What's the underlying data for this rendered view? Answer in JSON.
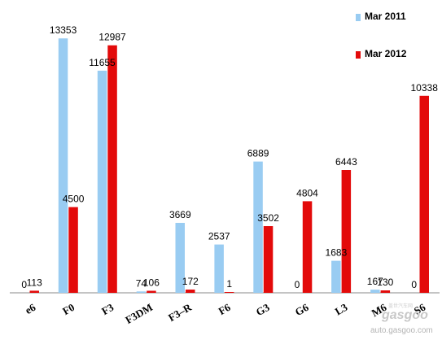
{
  "chart_data": {
    "type": "bar",
    "categories": [
      "e6",
      "F0",
      "F3",
      "F3DM",
      "F3-R",
      "F6",
      "G3",
      "G6",
      "L3",
      "M6",
      "S6"
    ],
    "series": [
      {
        "name": "Mar 2011",
        "color": "#99ccf2",
        "values": [
          0,
          13353,
          11655,
          74,
          3669,
          2537,
          6889,
          0,
          1683,
          167,
          0
        ]
      },
      {
        "name": "Mar 2012",
        "color": "#e30a0a",
        "values": [
          113,
          4500,
          12987,
          106,
          172,
          1,
          3502,
          4804,
          6443,
          130,
          10338
        ]
      }
    ],
    "category_labels": [
      "e6",
      "F0",
      "F3",
      "F3DM",
      "F3–R",
      "F6",
      "G3",
      "G6",
      "L3",
      "M6",
      "S6"
    ],
    "data_labels": [
      [
        "0",
        "13353",
        "11655",
        "74",
        "3669",
        "2537",
        "6889",
        "0",
        "1683",
        "167",
        "0"
      ],
      [
        "113",
        "4500",
        "12987",
        "106",
        "172",
        "1",
        "3502",
        "4804",
        "6443",
        "130",
        "10338"
      ]
    ],
    "title": "",
    "xlabel": "",
    "ylabel": "",
    "ylim": [
      0,
      14000
    ],
    "grid": false,
    "legend_position": "top-right"
  },
  "watermark": {
    "brand": "gasgoo",
    "url": "auto.gasgoo.com",
    "cn": "盖世汽车网"
  }
}
